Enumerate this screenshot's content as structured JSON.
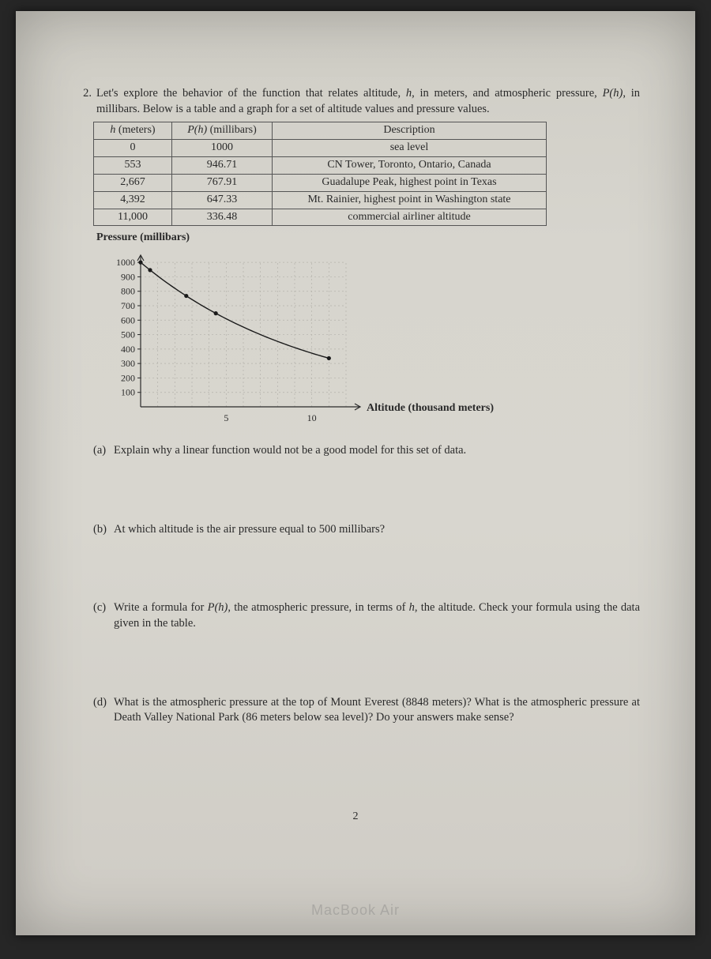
{
  "problem": {
    "number": "2.",
    "intro_a": "Let's explore the behavior of the function that relates altitude, ",
    "var_h": "h",
    "intro_b": ", in meters, and atmospheric pressure, ",
    "var_P": "P(h)",
    "intro_c": ", in millibars. Below is a table and a graph for a set of altitude values and pressure values."
  },
  "table": {
    "head_h_a": "h",
    "head_h_b": " (meters)",
    "head_p_a": "P(h)",
    "head_p_b": " (millibars)",
    "head_desc": "Description",
    "rows": [
      {
        "h": "0",
        "p": "1000",
        "d": "sea level"
      },
      {
        "h": "553",
        "p": "946.71",
        "d": "CN Tower, Toronto, Ontario, Canada"
      },
      {
        "h": "2,667",
        "p": "767.91",
        "d": "Guadalupe Peak, highest point in Texas"
      },
      {
        "h": "4,392",
        "p": "647.33",
        "d": "Mt. Rainier, highest point in Washington state"
      },
      {
        "h": "11,000",
        "p": "336.48",
        "d": "commercial airliner altitude"
      }
    ]
  },
  "chart": {
    "type": "scatter-with-curve",
    "y_axis_title": "Pressure (millibars)",
    "x_axis_title": "Altitude (thousand meters)",
    "y_ticks": [
      "1000",
      "900",
      "800",
      "700",
      "600",
      "500",
      "400",
      "300",
      "200",
      "100"
    ],
    "x_ticks": [
      "5",
      "10"
    ],
    "xlim": [
      0,
      12
    ],
    "ylim": [
      0,
      1050
    ],
    "grid_color": "#b4b2aa",
    "axis_color": "#2a2a2a",
    "point_color": "#1a1a1a",
    "curve_color": "#1a1a1a",
    "line_width": 1.4,
    "point_radius": 2.6,
    "points_x": [
      0,
      0.553,
      2.667,
      4.392,
      11.0
    ],
    "points_y": [
      1000,
      946.71,
      767.91,
      647.33,
      336.48
    ],
    "tick_fontsize": 12,
    "title_fontsize": 14
  },
  "subs": {
    "a_tag": "(a)",
    "a": "Explain why a linear function would not be a good model for this set of data.",
    "b_tag": "(b)",
    "b": "At which altitude is the air pressure equal to 500 millibars?",
    "c_tag": "(c)",
    "c_a": "Write a formula for ",
    "c_var": "P(h)",
    "c_b": ", the atmospheric pressure, in terms of ",
    "c_var2": "h",
    "c_c": ", the altitude. Check your formula using the data given in the table.",
    "d_tag": "(d)",
    "d": "What is the atmospheric pressure at the top of Mount Everest (8848 meters)? What is the atmospheric pressure at Death Valley National Park (86 meters below sea level)? Do your answers make sense?"
  },
  "page_number": "2",
  "watermark": "MacBook Air"
}
